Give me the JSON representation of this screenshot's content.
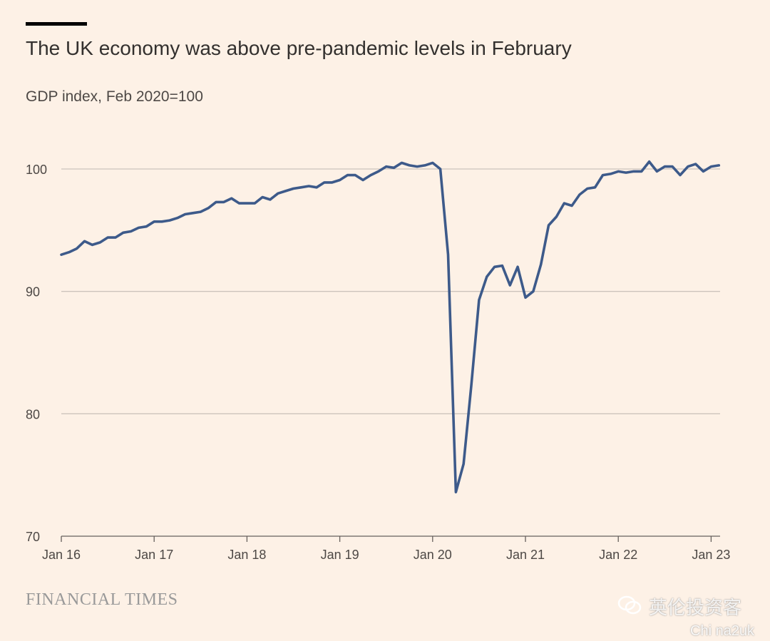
{
  "title": "The UK economy was above pre-pandemic levels in February",
  "subtitle": "GDP index, Feb 2020=100",
  "brand": "FINANCIAL TIMES",
  "watermark": "英伦投资客",
  "watermark_sub": "Chi na2uk",
  "colors": {
    "background": "#fdf1e6",
    "line": "#3d5a8a",
    "grid": "#ccc4bc",
    "text": "#33302e"
  },
  "chart_data": {
    "type": "line",
    "title": "The UK economy was above pre-pandemic levels in February",
    "subtitle": "GDP index, Feb 2020=100",
    "xlabel": "",
    "ylabel": "",
    "ylim": [
      70,
      100
    ],
    "yticks": [
      70,
      80,
      90,
      100
    ],
    "ytick_labels": [
      "70",
      "80",
      "90",
      "100"
    ],
    "xticks": [
      "2016-01",
      "2017-01",
      "2018-01",
      "2019-01",
      "2020-01",
      "2021-01",
      "2022-01",
      "2023-01"
    ],
    "xtick_labels": [
      "Jan 16",
      "Jan 17",
      "Jan 18",
      "Jan 19",
      "Jan 20",
      "Jan 21",
      "Jan 22",
      "Jan 23"
    ],
    "grid": "horizontal",
    "series": [
      {
        "x": [
          "2016-01",
          "2016-02",
          "2016-03",
          "2016-04",
          "2016-05",
          "2016-06",
          "2016-07",
          "2016-08",
          "2016-09",
          "2016-10",
          "2016-11",
          "2016-12",
          "2017-01",
          "2017-02",
          "2017-03",
          "2017-04",
          "2017-05",
          "2017-06",
          "2017-07",
          "2017-08",
          "2017-09",
          "2017-10",
          "2017-11",
          "2017-12",
          "2018-01",
          "2018-02",
          "2018-03",
          "2018-04",
          "2018-05",
          "2018-06",
          "2018-07",
          "2018-08",
          "2018-09",
          "2018-10",
          "2018-11",
          "2018-12",
          "2019-01",
          "2019-02",
          "2019-03",
          "2019-04",
          "2019-05",
          "2019-06",
          "2019-07",
          "2019-08",
          "2019-09",
          "2019-10",
          "2019-11",
          "2019-12",
          "2020-01",
          "2020-02",
          "2020-03",
          "2020-04",
          "2020-05",
          "2020-06",
          "2020-07",
          "2020-08",
          "2020-09",
          "2020-10",
          "2020-11",
          "2020-12",
          "2021-01",
          "2021-02",
          "2021-03",
          "2021-04",
          "2021-05",
          "2021-06",
          "2021-07",
          "2021-08",
          "2021-09",
          "2021-10",
          "2021-11",
          "2021-12",
          "2022-01",
          "2022-02",
          "2022-03",
          "2022-04",
          "2022-05",
          "2022-06",
          "2022-07",
          "2022-08",
          "2022-09",
          "2022-10",
          "2022-11",
          "2022-12",
          "2023-01",
          "2023-02"
        ],
        "values": [
          93.0,
          93.2,
          93.5,
          94.1,
          93.8,
          94.0,
          94.4,
          94.4,
          94.8,
          94.9,
          95.2,
          95.3,
          95.7,
          95.7,
          95.8,
          96.0,
          96.3,
          96.4,
          96.5,
          96.8,
          97.3,
          97.3,
          97.6,
          97.2,
          97.2,
          97.2,
          97.7,
          97.5,
          98.0,
          98.2,
          98.4,
          98.5,
          98.6,
          98.5,
          98.9,
          98.9,
          99.1,
          99.5,
          99.5,
          99.1,
          99.5,
          99.8,
          100.2,
          100.1,
          100.5,
          100.3,
          100.2,
          100.3,
          100.5,
          100.0,
          93.0,
          73.6,
          75.9,
          82.3,
          89.3,
          91.2,
          92.0,
          92.1,
          90.5,
          92.0,
          89.5,
          90.0,
          92.2,
          95.4,
          96.1,
          97.2,
          97.0,
          97.9,
          98.4,
          98.5,
          99.5,
          99.6,
          99.8,
          99.7,
          99.8,
          99.8,
          100.6,
          99.8,
          100.2,
          100.2,
          99.5,
          100.2,
          100.4,
          99.8,
          100.2,
          100.3
        ]
      }
    ]
  }
}
